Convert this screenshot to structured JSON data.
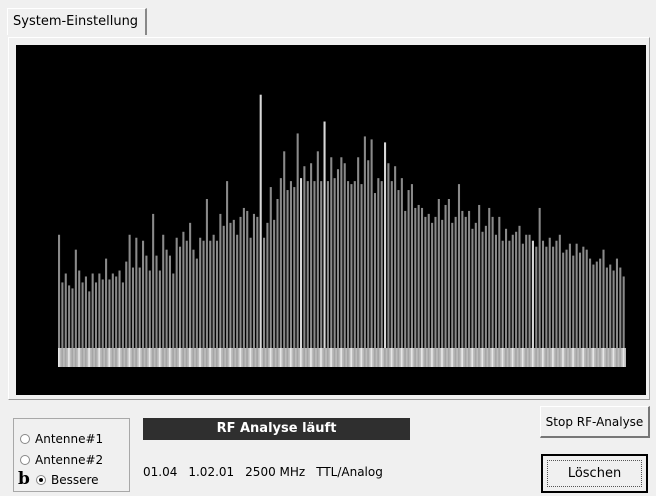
{
  "tabs": [
    {
      "label": "System-Einstellung",
      "active": true
    }
  ],
  "status": {
    "text": "RF Analyse läuft"
  },
  "antenna": {
    "options": [
      {
        "label": "Antenne#1",
        "checked": false
      },
      {
        "label": "Antenne#2",
        "checked": false
      },
      {
        "label": "Bessere",
        "checked": true
      }
    ],
    "icon": "b-logo-icon"
  },
  "info": {
    "version1": "01.04",
    "version2": "1.02.01",
    "frequency": "2500 MHz",
    "mode": "TTL/Analog"
  },
  "buttons": {
    "stop_label": "Stop RF-Analyse",
    "clear_label": "Löschen"
  },
  "colors": {
    "spectrum_background": "#000000",
    "bar_color": "#8a8a8a",
    "bar_highlight": "#d8d8d8",
    "baseline_color": "#bcbcbc",
    "status_background": "#2f2f2f"
  },
  "chart_data": {
    "type": "bar",
    "values": [
      0.38,
      0.22,
      0.25,
      0.21,
      0.2,
      0.33,
      0.26,
      0.22,
      0.24,
      0.19,
      0.25,
      0.22,
      0.25,
      0.23,
      0.3,
      0.23,
      0.25,
      0.24,
      0.26,
      0.22,
      0.29,
      0.38,
      0.27,
      0.37,
      0.27,
      0.36,
      0.31,
      0.26,
      0.45,
      0.31,
      0.26,
      0.38,
      0.33,
      0.31,
      0.25,
      0.37,
      0.34,
      0.39,
      0.36,
      0.42,
      0.33,
      0.3,
      0.37,
      0.36,
      0.5,
      0.36,
      0.38,
      0.36,
      0.45,
      0.41,
      0.56,
      0.42,
      0.43,
      0.38,
      0.44,
      0.47,
      0.46,
      0.37,
      0.45,
      0.44,
      0.85,
      0.37,
      0.42,
      0.54,
      0.43,
      0.5,
      0.57,
      0.66,
      0.53,
      0.56,
      0.54,
      0.72,
      0.57,
      0.61,
      0.56,
      0.62,
      0.56,
      0.66,
      0.56,
      0.76,
      0.56,
      0.64,
      0.57,
      0.6,
      0.64,
      0.62,
      0.56,
      0.55,
      0.56,
      0.64,
      0.55,
      0.71,
      0.63,
      0.7,
      0.52,
      0.57,
      0.56,
      0.69,
      0.62,
      0.56,
      0.61,
      0.53,
      0.57,
      0.46,
      0.53,
      0.55,
      0.47,
      0.48,
      0.47,
      0.44,
      0.45,
      0.42,
      0.44,
      0.5,
      0.43,
      0.48,
      0.5,
      0.42,
      0.44,
      0.55,
      0.46,
      0.44,
      0.46,
      0.4,
      0.42,
      0.48,
      0.39,
      0.41,
      0.47,
      0.44,
      0.38,
      0.44,
      0.36,
      0.4,
      0.36,
      0.38,
      0.39,
      0.41,
      0.35,
      0.38,
      0.38,
      0.36,
      0.34,
      0.47,
      0.36,
      0.34,
      0.37,
      0.34,
      0.36,
      0.38,
      0.32,
      0.33,
      0.35,
      0.31,
      0.35,
      0.32,
      0.34,
      0.33,
      0.3,
      0.28,
      0.29,
      0.3,
      0.33,
      0.27,
      0.28,
      0.26,
      0.3,
      0.27,
      0.24
    ],
    "highlight_indices": [
      60,
      72,
      79,
      97,
      141
    ],
    "ylim": [
      0,
      1
    ],
    "grid": false,
    "xlabel": "",
    "ylabel": ""
  }
}
